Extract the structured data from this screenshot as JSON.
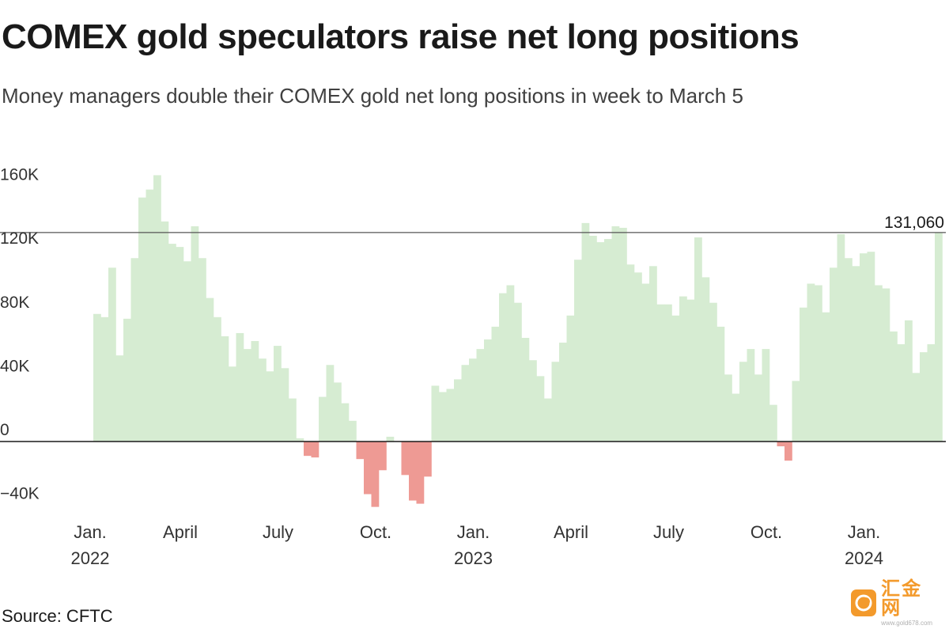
{
  "header": {
    "title": "COMEX gold speculators raise net long positions",
    "subtitle": "Money managers double their COMEX gold net long positions in week to March 5"
  },
  "footer": {
    "source": "Source: CFTC"
  },
  "watermark": {
    "logo_text": "汇金网",
    "url": "www.gold678.com"
  },
  "colors": {
    "positive": "#d6ecd2",
    "negative": "#ee9a94",
    "axis": "#1a1a1a",
    "reference_line": "#555555",
    "text": "#1a1a1a"
  },
  "chart_data": {
    "type": "bar",
    "title": "COMEX gold speculators raise net long positions",
    "subtitle": "Money managers double their COMEX gold net long positions in week to March 5",
    "ylim": [
      -50000,
      172000
    ],
    "y_ticks": [
      {
        "value": 160000,
        "label": "160K"
      },
      {
        "value": 120000,
        "label": "120K"
      },
      {
        "value": 80000,
        "label": "80K"
      },
      {
        "value": 40000,
        "label": "40K"
      },
      {
        "value": 0,
        "label": "0"
      },
      {
        "value": -40000,
        "label": "−40K"
      }
    ],
    "x_ticks": [
      {
        "index": 0,
        "line1": "Jan.",
        "line2": "2022"
      },
      {
        "index": 12,
        "line1": "April",
        "line2": ""
      },
      {
        "index": 25,
        "line1": "July",
        "line2": ""
      },
      {
        "index": 38,
        "line1": "Oct.",
        "line2": ""
      },
      {
        "index": 51,
        "line1": "Jan.",
        "line2": "2023"
      },
      {
        "index": 64,
        "line1": "April",
        "line2": ""
      },
      {
        "index": 77,
        "line1": "July",
        "line2": ""
      },
      {
        "index": 90,
        "line1": "Oct.",
        "line2": ""
      },
      {
        "index": 103,
        "line1": "Jan.",
        "line2": "2024"
      }
    ],
    "reference_line": {
      "value": 131060,
      "label": "131,060"
    },
    "values": [
      80000,
      78000,
      109000,
      54000,
      77000,
      115000,
      153000,
      158000,
      167000,
      138000,
      124000,
      122000,
      113000,
      135000,
      115000,
      90000,
      78000,
      66000,
      47000,
      68000,
      58000,
      63000,
      52000,
      44000,
      60000,
      46000,
      27000,
      2000,
      -9000,
      -10000,
      28000,
      48000,
      37000,
      24000,
      13000,
      -11000,
      -33000,
      -41000,
      -18000,
      3000,
      0,
      -21000,
      -37000,
      -39000,
      -22000,
      35000,
      31000,
      33000,
      39000,
      48000,
      52000,
      58000,
      64000,
      72000,
      93000,
      98000,
      87000,
      65000,
      51000,
      41000,
      27000,
      50000,
      62000,
      79000,
      114000,
      137000,
      129000,
      125000,
      127000,
      135000,
      134000,
      111000,
      106000,
      99000,
      110000,
      86000,
      86000,
      79000,
      91000,
      89000,
      128000,
      103000,
      87000,
      72000,
      42000,
      30000,
      50000,
      58000,
      42000,
      58000,
      23000,
      -3000,
      -12000,
      38000,
      84000,
      99000,
      98000,
      81000,
      109000,
      130000,
      115000,
      110000,
      118000,
      119000,
      98000,
      96000,
      69000,
      61000,
      76000,
      43000,
      56000,
      61000,
      131060
    ]
  }
}
